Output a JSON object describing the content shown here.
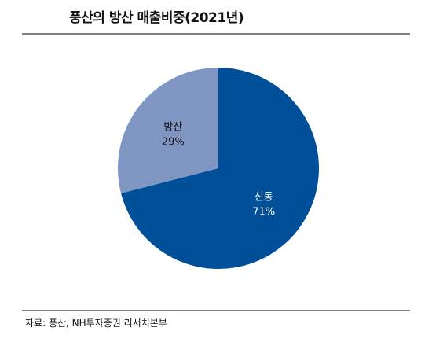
{
  "chart_data": {
    "type": "pie",
    "title": "풍산의 방산 매출비중(2021년)",
    "slices": [
      {
        "label": "신동",
        "value": 71,
        "value_text": "71%",
        "color": "#004f99",
        "text_color": "#ffffff"
      },
      {
        "label": "방산",
        "value": 29,
        "value_text": "29%",
        "color": "#7f95c2",
        "text_color": "#111111"
      }
    ],
    "start_angle": "12 o'clock",
    "direction": "clockwise",
    "legend": "none (labels inside slices)"
  },
  "footer": {
    "source": "자료: 풍산, NH투자증권 리서치본부"
  }
}
